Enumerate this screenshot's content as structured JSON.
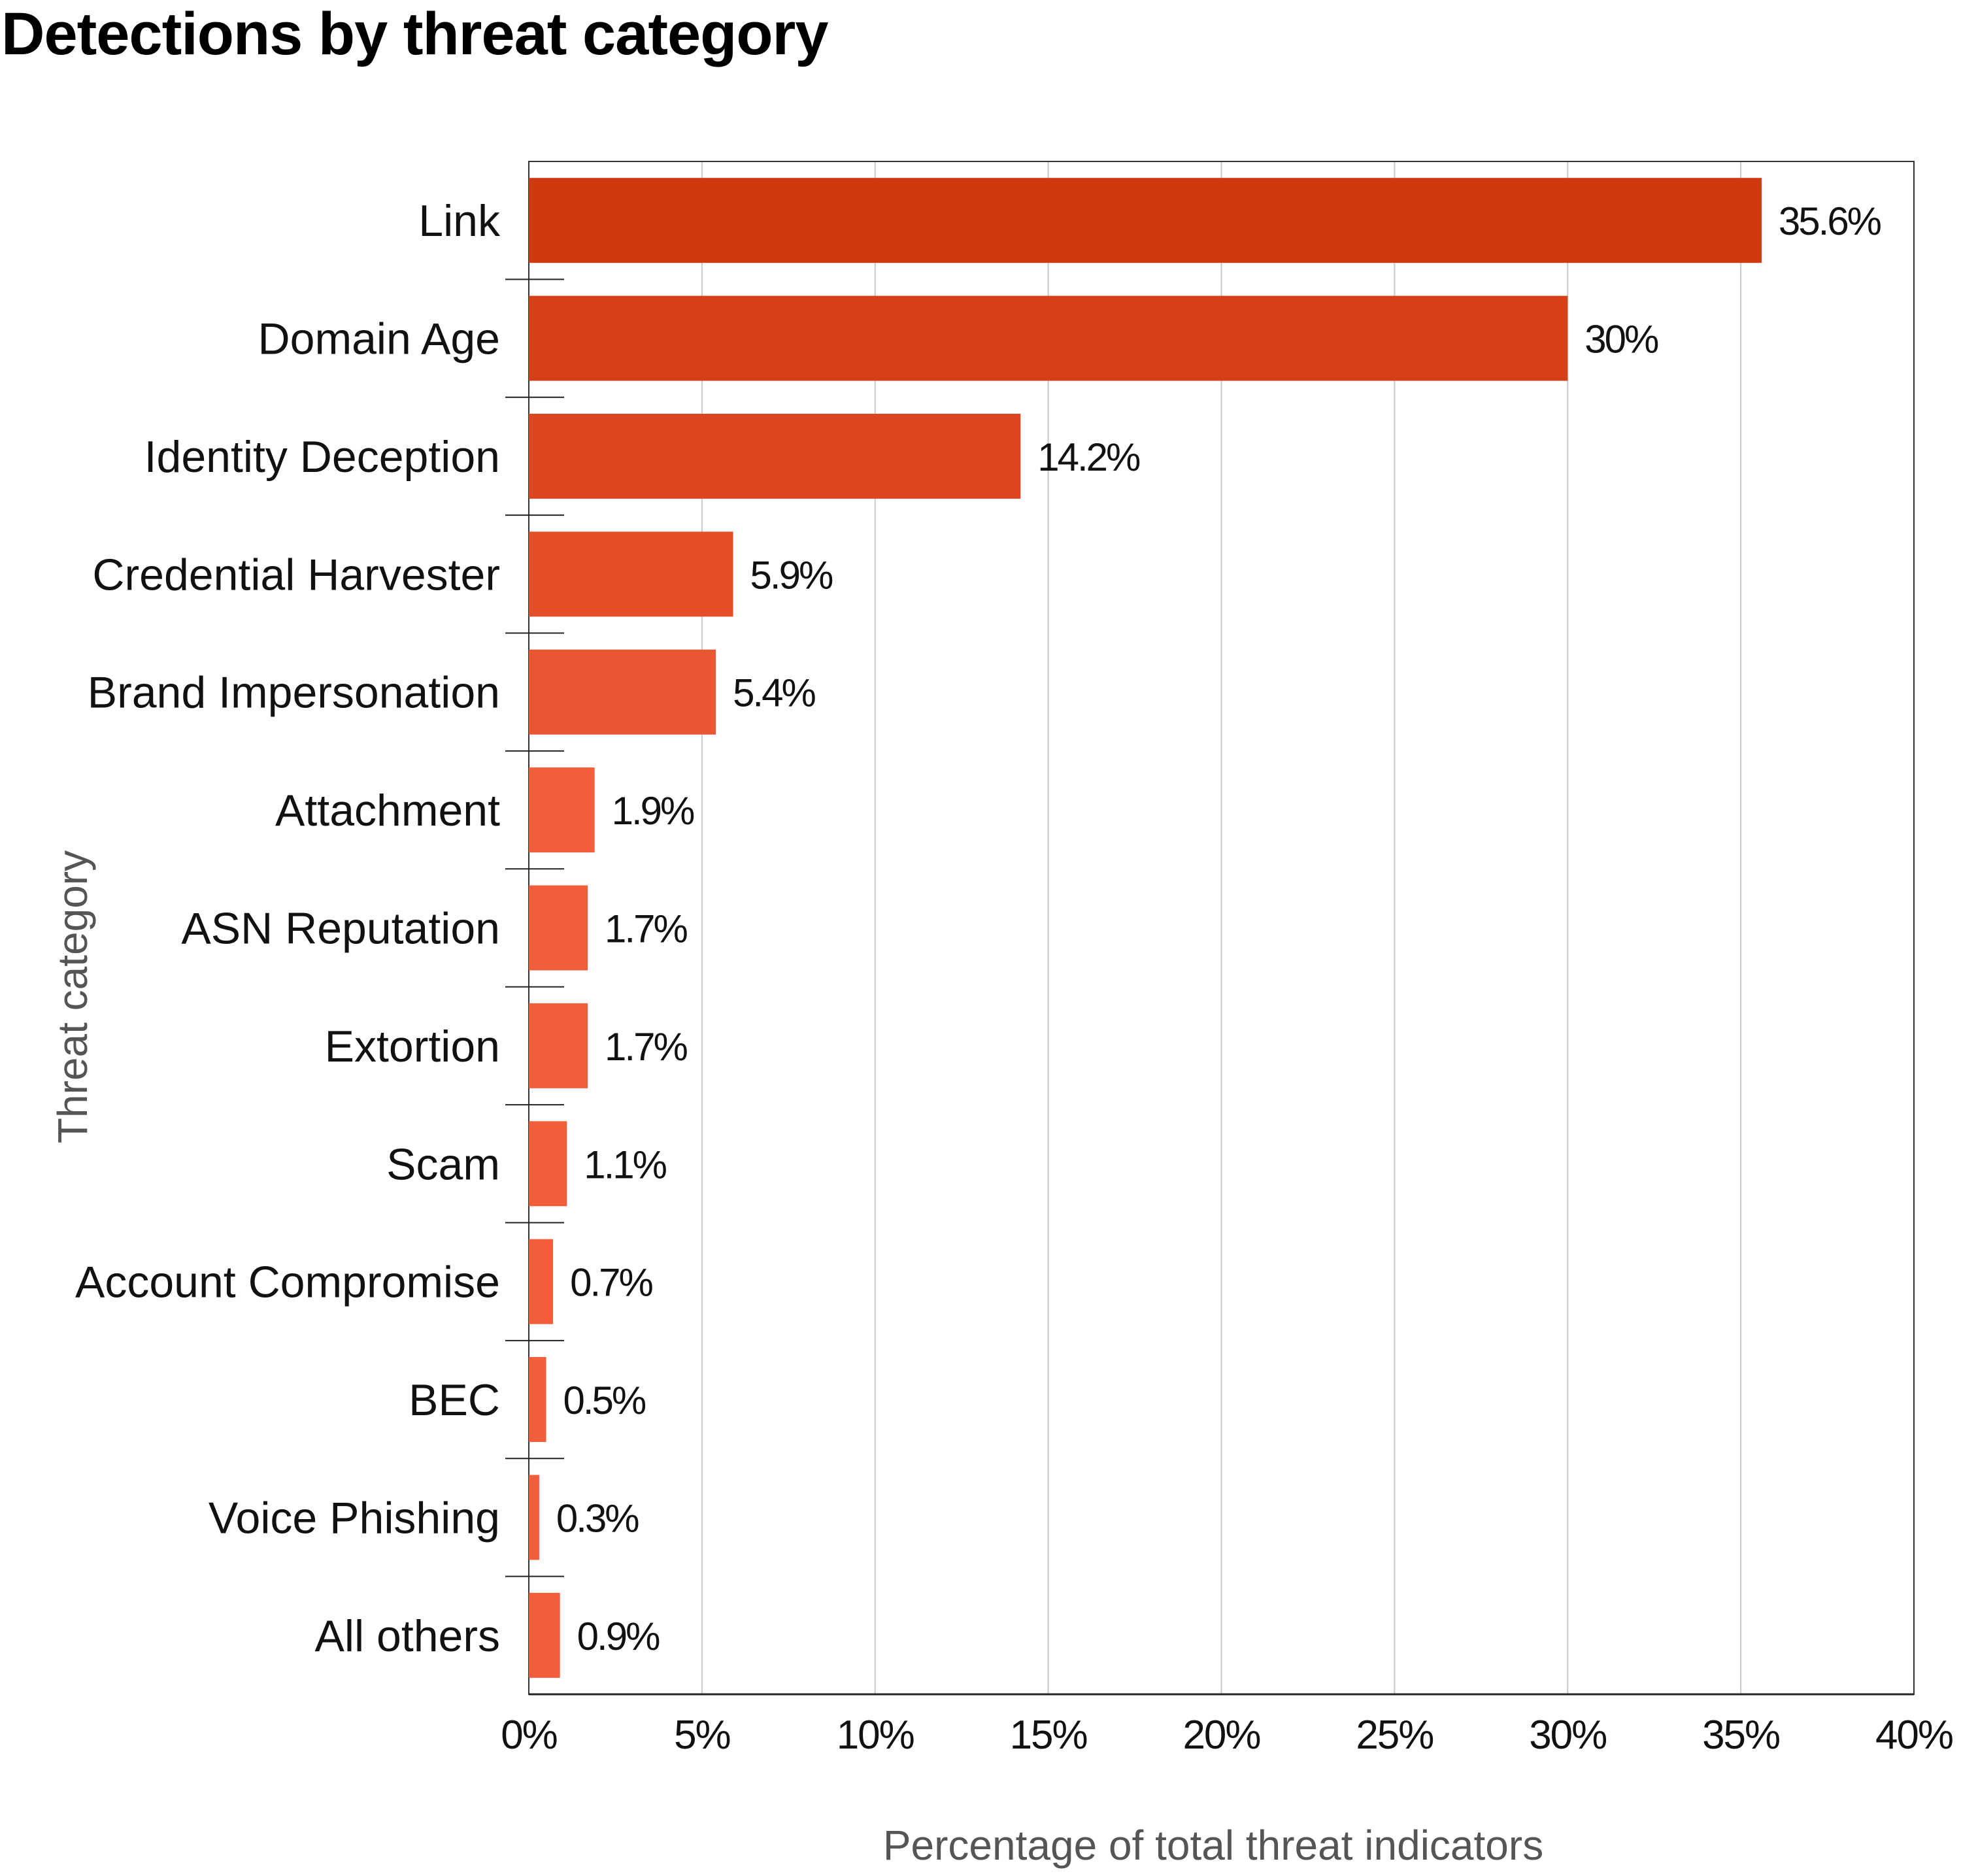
{
  "chart_data": {
    "type": "bar",
    "orientation": "horizontal",
    "title": "Detections by threat category",
    "xlabel": "Percentage of total threat indicators",
    "ylabel": "Threat category",
    "categories": [
      "Link",
      "Domain Age",
      "Identity Deception",
      "Credential Harvester",
      "Brand Impersonation",
      "Attachment",
      "ASN Reputation",
      "Extortion",
      "Scam",
      "Account Compromise",
      "BEC",
      "Voice Phishing",
      "All others"
    ],
    "values": [
      35.6,
      30,
      14.2,
      5.9,
      5.4,
      1.9,
      1.7,
      1.7,
      1.1,
      0.7,
      0.5,
      0.3,
      0.9
    ],
    "data_labels": [
      "35.6%",
      "30%",
      "14.2%",
      "5.9%",
      "5.4%",
      "1.9%",
      "1.7%",
      "1.7%",
      "1.1%",
      "0.7%",
      "0.5%",
      "0.3%",
      "0.9%"
    ],
    "xlim": [
      0,
      40
    ],
    "xticks": [
      "0%",
      "5%",
      "10%",
      "15%",
      "20%",
      "25%",
      "30%",
      "35%",
      "40%"
    ],
    "grid": "vertical",
    "colors": {
      "darkest": "#CE3910",
      "lightest": "#F25D3A"
    }
  }
}
